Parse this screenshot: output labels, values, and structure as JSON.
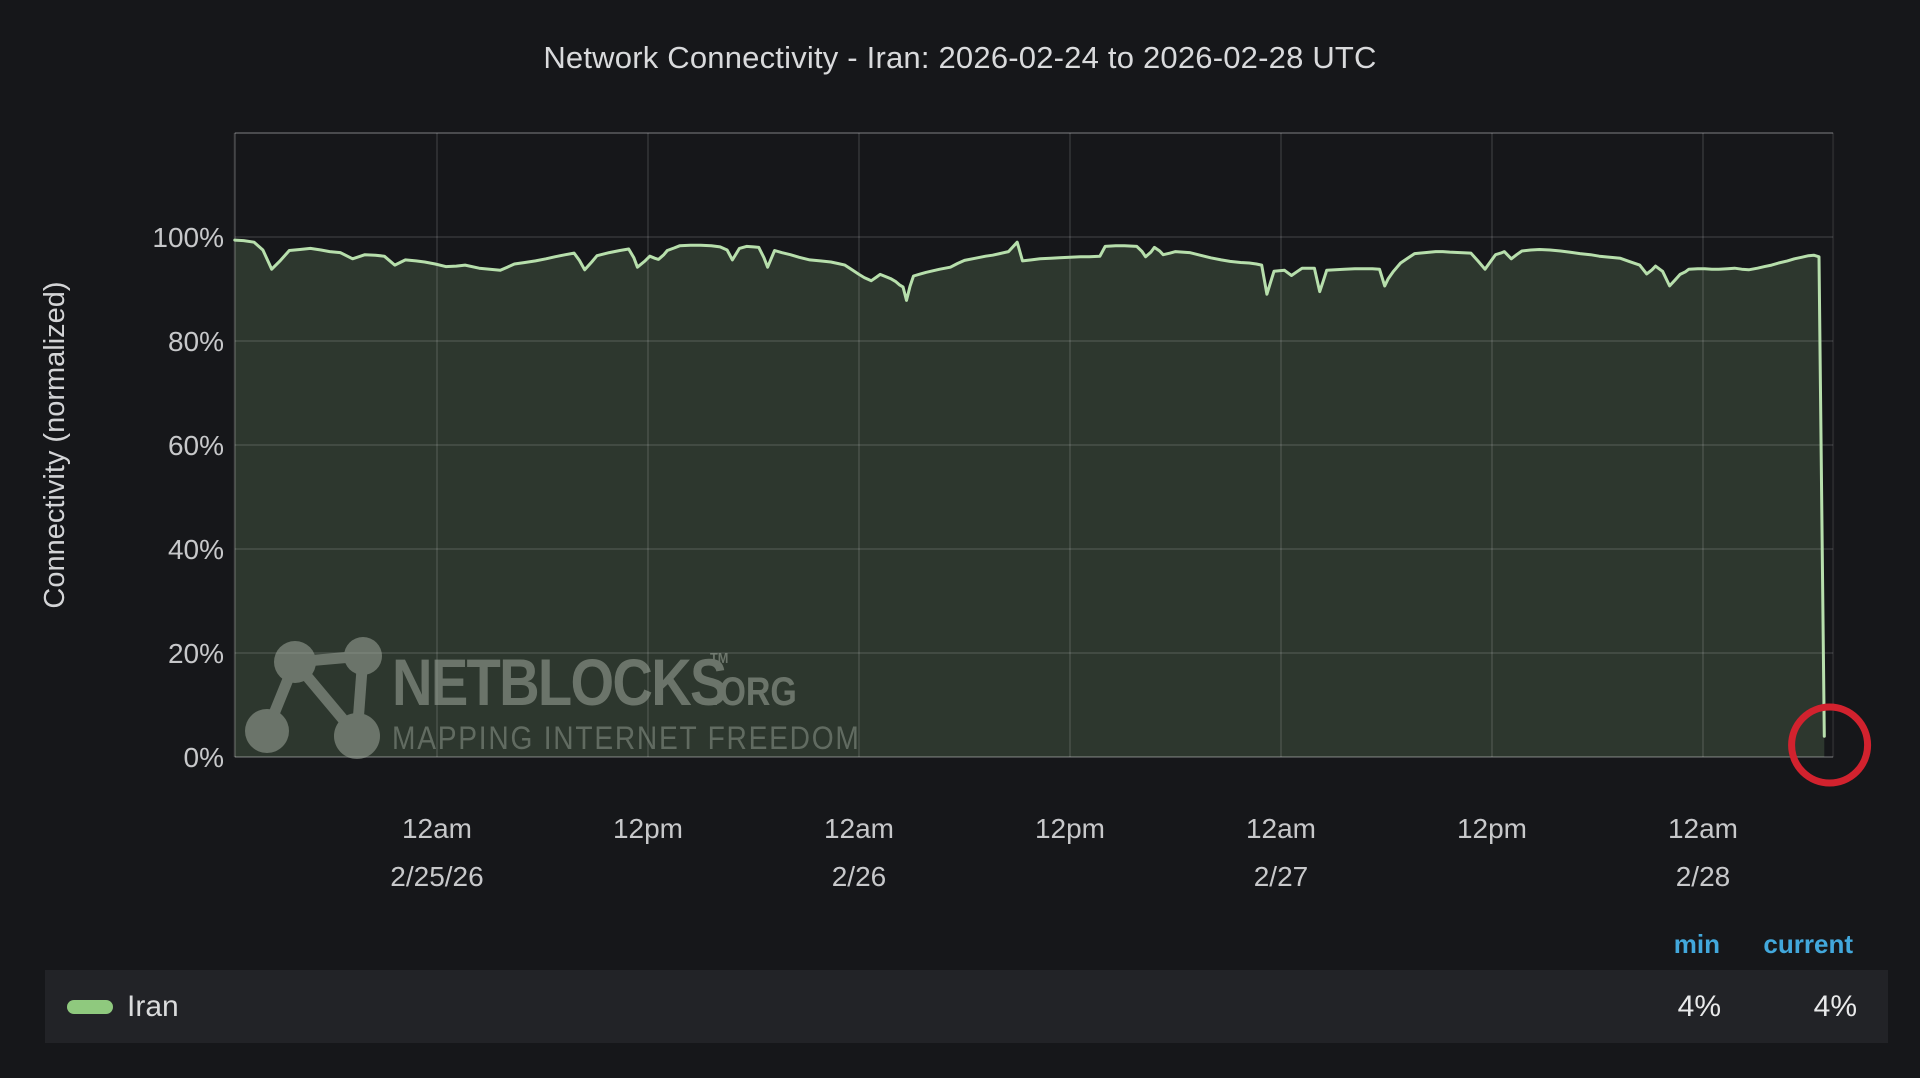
{
  "title": "Network Connectivity - Iran: 2026-02-24 to 2026-02-28 UTC",
  "y_axis": {
    "label": "Connectivity (normalized)"
  },
  "watermark": {
    "brand": "NETBLOCKS",
    "tm": "TM",
    "tld": ".ORG",
    "tagline": "MAPPING INTERNET FREEDOM"
  },
  "legend": {
    "min_label": "min",
    "current_label": "current",
    "series_name": "Iran",
    "min_value": "4%",
    "current_value": "4%"
  },
  "colors": {
    "background": "#16171a",
    "legend_row": "#222327",
    "accent_blue": "#42a8dc",
    "line_green": "#b7dfac",
    "area_fill_green": "#2d372e",
    "swatch_green": "#8fc97e",
    "annotation_red": "#d2222e",
    "text": "#d9dadc",
    "tick_text": "#c7c8ca",
    "grid": "rgba(255,255,255,0.10)",
    "border": "rgba(255,255,255,0.20)"
  },
  "chart_data": {
    "type": "area",
    "title": "Network Connectivity - Iran: 2026-02-24 to 2026-02-28 UTC",
    "ylabel": "Connectivity (normalized)",
    "x_unit": "hours since 2026-02-24 00:00 UTC",
    "x_window": [
      12.5,
      103.4
    ],
    "ylim": [
      0,
      120
    ],
    "y_ticks": [
      0,
      20,
      40,
      60,
      80,
      100
    ],
    "grid": true,
    "legend_position": "bottom",
    "x_ticks": [
      {
        "h": 24,
        "label": "12am",
        "date": "2/25/26"
      },
      {
        "h": 36,
        "label": "12pm",
        "date": ""
      },
      {
        "h": 48,
        "label": "12am",
        "date": "2/26"
      },
      {
        "h": 60,
        "label": "12pm",
        "date": ""
      },
      {
        "h": 72,
        "label": "12am",
        "date": "2/27"
      },
      {
        "h": 84,
        "label": "12pm",
        "date": ""
      },
      {
        "h": 96,
        "label": "12am",
        "date": "2/28"
      }
    ],
    "series": [
      {
        "name": "Iran",
        "min": 4,
        "current": 4,
        "points": [
          [
            12.5,
            99.4
          ],
          [
            13.0,
            99.3
          ],
          [
            13.6,
            99.0
          ],
          [
            14.1,
            97.5
          ],
          [
            14.6,
            93.8
          ],
          [
            15.1,
            95.5
          ],
          [
            15.6,
            97.4
          ],
          [
            16.2,
            97.6
          ],
          [
            16.8,
            97.8
          ],
          [
            17.4,
            97.5
          ],
          [
            17.9,
            97.2
          ],
          [
            18.5,
            97.0
          ],
          [
            19.2,
            95.8
          ],
          [
            19.9,
            96.6
          ],
          [
            20.5,
            96.5
          ],
          [
            21.0,
            96.3
          ],
          [
            21.6,
            94.6
          ],
          [
            22.2,
            95.6
          ],
          [
            22.8,
            95.4
          ],
          [
            23.3,
            95.2
          ],
          [
            23.9,
            94.8
          ],
          [
            24.5,
            94.3
          ],
          [
            25.1,
            94.4
          ],
          [
            25.6,
            94.6
          ],
          [
            26.4,
            94.0
          ],
          [
            27.0,
            93.8
          ],
          [
            27.6,
            93.6
          ],
          [
            28.0,
            94.2
          ],
          [
            28.4,
            94.8
          ],
          [
            29.0,
            95.1
          ],
          [
            29.6,
            95.4
          ],
          [
            30.2,
            95.8
          ],
          [
            30.7,
            96.2
          ],
          [
            31.3,
            96.6
          ],
          [
            31.8,
            96.9
          ],
          [
            32.1,
            95.5
          ],
          [
            32.4,
            93.7
          ],
          [
            32.8,
            95.2
          ],
          [
            33.1,
            96.4
          ],
          [
            33.8,
            97.0
          ],
          [
            34.4,
            97.4
          ],
          [
            34.9,
            97.7
          ],
          [
            35.2,
            96.0
          ],
          [
            35.4,
            94.2
          ],
          [
            35.8,
            95.3
          ],
          [
            36.1,
            96.3
          ],
          [
            36.4,
            95.9
          ],
          [
            36.6,
            95.7
          ],
          [
            36.9,
            96.6
          ],
          [
            37.1,
            97.4
          ],
          [
            37.5,
            97.9
          ],
          [
            37.8,
            98.3
          ],
          [
            38.4,
            98.4
          ],
          [
            39.0,
            98.4
          ],
          [
            39.6,
            98.3
          ],
          [
            40.1,
            98.1
          ],
          [
            40.5,
            97.5
          ],
          [
            40.8,
            95.6
          ],
          [
            41.2,
            97.8
          ],
          [
            41.6,
            98.2
          ],
          [
            42.0,
            98.1
          ],
          [
            42.3,
            98.0
          ],
          [
            42.6,
            96.0
          ],
          [
            42.8,
            94.2
          ],
          [
            43.0,
            95.8
          ],
          [
            43.2,
            97.4
          ],
          [
            43.6,
            97.0
          ],
          [
            44.1,
            96.6
          ],
          [
            44.6,
            96.1
          ],
          [
            45.2,
            95.6
          ],
          [
            45.8,
            95.4
          ],
          [
            46.4,
            95.2
          ],
          [
            46.8,
            94.9
          ],
          [
            47.2,
            94.6
          ],
          [
            47.6,
            93.7
          ],
          [
            48.0,
            92.8
          ],
          [
            48.3,
            92.2
          ],
          [
            48.7,
            91.6
          ],
          [
            49.0,
            92.3
          ],
          [
            49.2,
            92.8
          ],
          [
            49.5,
            92.4
          ],
          [
            49.8,
            92.0
          ],
          [
            50.1,
            91.4
          ],
          [
            50.3,
            90.8
          ],
          [
            50.5,
            90.4
          ],
          [
            50.7,
            87.8
          ],
          [
            50.9,
            90.5
          ],
          [
            51.1,
            92.5
          ],
          [
            51.5,
            92.9
          ],
          [
            51.8,
            93.2
          ],
          [
            52.2,
            93.5
          ],
          [
            52.6,
            93.8
          ],
          [
            53.2,
            94.2
          ],
          [
            53.6,
            94.9
          ],
          [
            54.0,
            95.5
          ],
          [
            54.6,
            95.9
          ],
          [
            55.2,
            96.3
          ],
          [
            55.6,
            96.5
          ],
          [
            56.0,
            96.8
          ],
          [
            56.5,
            97.2
          ],
          [
            57.0,
            99.0
          ],
          [
            57.3,
            95.4
          ],
          [
            57.8,
            95.6
          ],
          [
            58.3,
            95.8
          ],
          [
            58.9,
            95.9
          ],
          [
            59.4,
            96.0
          ],
          [
            60.0,
            96.1
          ],
          [
            60.6,
            96.2
          ],
          [
            61.1,
            96.2
          ],
          [
            61.7,
            96.3
          ],
          [
            62.0,
            98.2
          ],
          [
            62.6,
            98.3
          ],
          [
            63.1,
            98.3
          ],
          [
            63.8,
            98.2
          ],
          [
            64.1,
            97.2
          ],
          [
            64.3,
            96.2
          ],
          [
            64.6,
            97.1
          ],
          [
            64.8,
            98.0
          ],
          [
            65.1,
            97.3
          ],
          [
            65.3,
            96.6
          ],
          [
            65.7,
            96.9
          ],
          [
            66.0,
            97.2
          ],
          [
            66.4,
            97.1
          ],
          [
            66.8,
            97.0
          ],
          [
            67.4,
            96.5
          ],
          [
            68.0,
            96.0
          ],
          [
            68.6,
            95.6
          ],
          [
            69.1,
            95.3
          ],
          [
            69.7,
            95.1
          ],
          [
            70.2,
            95.0
          ],
          [
            70.6,
            94.8
          ],
          [
            70.9,
            94.6
          ],
          [
            71.2,
            89.0
          ],
          [
            71.4,
            91.2
          ],
          [
            71.6,
            93.4
          ],
          [
            71.9,
            93.5
          ],
          [
            72.2,
            93.6
          ],
          [
            72.4,
            93.1
          ],
          [
            72.6,
            92.6
          ],
          [
            72.9,
            93.3
          ],
          [
            73.2,
            94.0
          ],
          [
            73.5,
            94.0
          ],
          [
            73.9,
            94.0
          ],
          [
            74.2,
            89.5
          ],
          [
            74.4,
            91.5
          ],
          [
            74.6,
            93.6
          ],
          [
            75.1,
            93.7
          ],
          [
            75.6,
            93.8
          ],
          [
            76.2,
            93.9
          ],
          [
            76.8,
            93.9
          ],
          [
            77.2,
            93.9
          ],
          [
            77.6,
            93.8
          ],
          [
            77.9,
            90.6
          ],
          [
            78.1,
            92.0
          ],
          [
            78.4,
            93.4
          ],
          [
            78.6,
            94.2
          ],
          [
            78.8,
            95.0
          ],
          [
            79.2,
            95.9
          ],
          [
            79.6,
            96.8
          ],
          [
            80.2,
            97.0
          ],
          [
            80.8,
            97.2
          ],
          [
            81.2,
            97.2
          ],
          [
            81.6,
            97.1
          ],
          [
            82.2,
            97.0
          ],
          [
            82.8,
            96.9
          ],
          [
            83.2,
            95.4
          ],
          [
            83.6,
            93.8
          ],
          [
            83.9,
            95.2
          ],
          [
            84.2,
            96.6
          ],
          [
            84.5,
            96.9
          ],
          [
            84.7,
            97.2
          ],
          [
            84.9,
            96.5
          ],
          [
            85.1,
            95.8
          ],
          [
            85.4,
            96.6
          ],
          [
            85.7,
            97.3
          ],
          [
            86.2,
            97.5
          ],
          [
            86.7,
            97.6
          ],
          [
            87.3,
            97.5
          ],
          [
            87.9,
            97.3
          ],
          [
            88.4,
            97.1
          ],
          [
            89.0,
            96.8
          ],
          [
            89.6,
            96.6
          ],
          [
            90.1,
            96.3
          ],
          [
            90.7,
            96.1
          ],
          [
            91.3,
            95.9
          ],
          [
            91.8,
            95.3
          ],
          [
            92.4,
            94.6
          ],
          [
            92.8,
            92.9
          ],
          [
            93.1,
            93.7
          ],
          [
            93.3,
            94.4
          ],
          [
            93.5,
            93.9
          ],
          [
            93.7,
            93.4
          ],
          [
            94.1,
            90.6
          ],
          [
            94.4,
            91.7
          ],
          [
            94.7,
            92.8
          ],
          [
            95.0,
            93.3
          ],
          [
            95.2,
            93.8
          ],
          [
            95.7,
            93.9
          ],
          [
            96.1,
            93.9
          ],
          [
            96.5,
            93.8
          ],
          [
            96.9,
            93.8
          ],
          [
            97.4,
            93.9
          ],
          [
            97.8,
            94.0
          ],
          [
            98.2,
            93.8
          ],
          [
            98.6,
            93.7
          ],
          [
            99.1,
            94.0
          ],
          [
            99.5,
            94.3
          ],
          [
            99.9,
            94.6
          ],
          [
            100.3,
            95.0
          ],
          [
            100.8,
            95.4
          ],
          [
            101.2,
            95.8
          ],
          [
            101.6,
            96.1
          ],
          [
            102.0,
            96.4
          ],
          [
            102.3,
            96.5
          ],
          [
            102.6,
            96.2
          ],
          [
            102.9,
            4.0
          ]
        ]
      }
    ],
    "annotation": {
      "type": "circle",
      "h": 103.2,
      "pct": 2.3,
      "r": 38
    }
  }
}
